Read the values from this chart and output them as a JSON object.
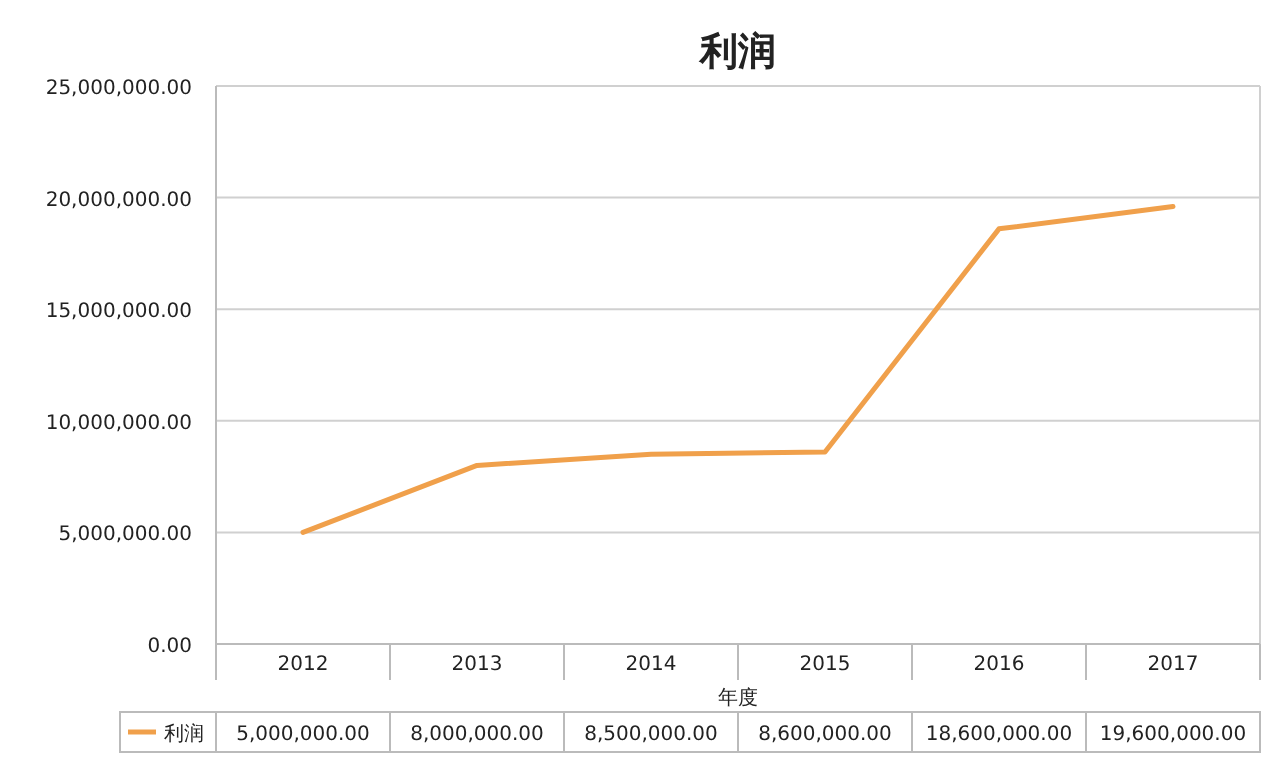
{
  "chart_data": {
    "type": "line",
    "title": "利润",
    "xlabel": "年度",
    "categories": [
      "2012",
      "2013",
      "2014",
      "2015",
      "2016",
      "2017"
    ],
    "series": [
      {
        "name": "利润",
        "color": "#f0a04b",
        "values": [
          5000000,
          8000000,
          8500000,
          8600000,
          18600000,
          19600000
        ],
        "value_labels": [
          "5,000,000.00",
          "8,000,000.00",
          "8,500,000.00",
          "8,600,000.00",
          "18,600,000.00",
          "19,600,000.00"
        ]
      }
    ],
    "ylim": [
      0,
      25000000
    ],
    "yticks": [
      {
        "value": 0,
        "label": "0.00"
      },
      {
        "value": 5000000,
        "label": "5,000,000.00"
      },
      {
        "value": 10000000,
        "label": "10,000,000.00"
      },
      {
        "value": 15000000,
        "label": "15,000,000.00"
      },
      {
        "value": 20000000,
        "label": "20,000,000.00"
      },
      {
        "value": 25000000,
        "label": "25,000,000.00"
      }
    ],
    "grid": "y",
    "legend": "bottom",
    "marker": "none",
    "line_style": "solid"
  }
}
